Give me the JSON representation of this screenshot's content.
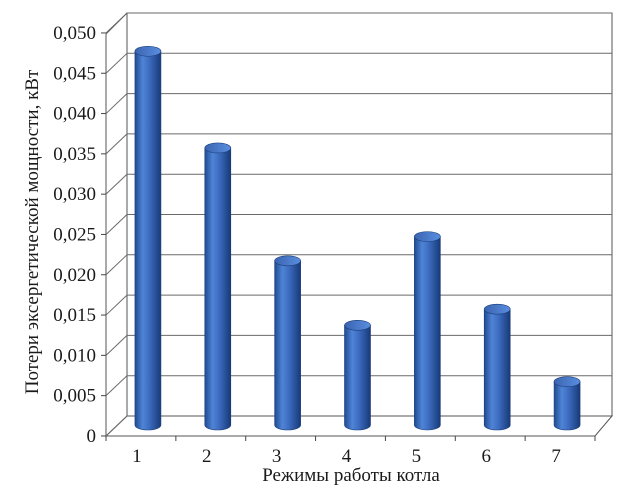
{
  "chart_data": {
    "type": "bar",
    "categories": [
      "1",
      "2",
      "3",
      "4",
      "5",
      "6",
      "7"
    ],
    "values": [
      0.046,
      0.034,
      0.02,
      0.012,
      0.023,
      0.014,
      0.005
    ],
    "yticks": [
      "0",
      "0,005",
      "0,010",
      "0,015",
      "0,020",
      "0,025",
      "0,030",
      "0,035",
      "0,040",
      "0,045",
      "0,050"
    ],
    "ylim": [
      0,
      0.05
    ],
    "xlabel": "Режимы работы котла",
    "ylabel": "Потери эксергетической мощности, кВт",
    "grid": true,
    "bar_color": "#3f6fc4",
    "style": "3d-cylinder"
  }
}
